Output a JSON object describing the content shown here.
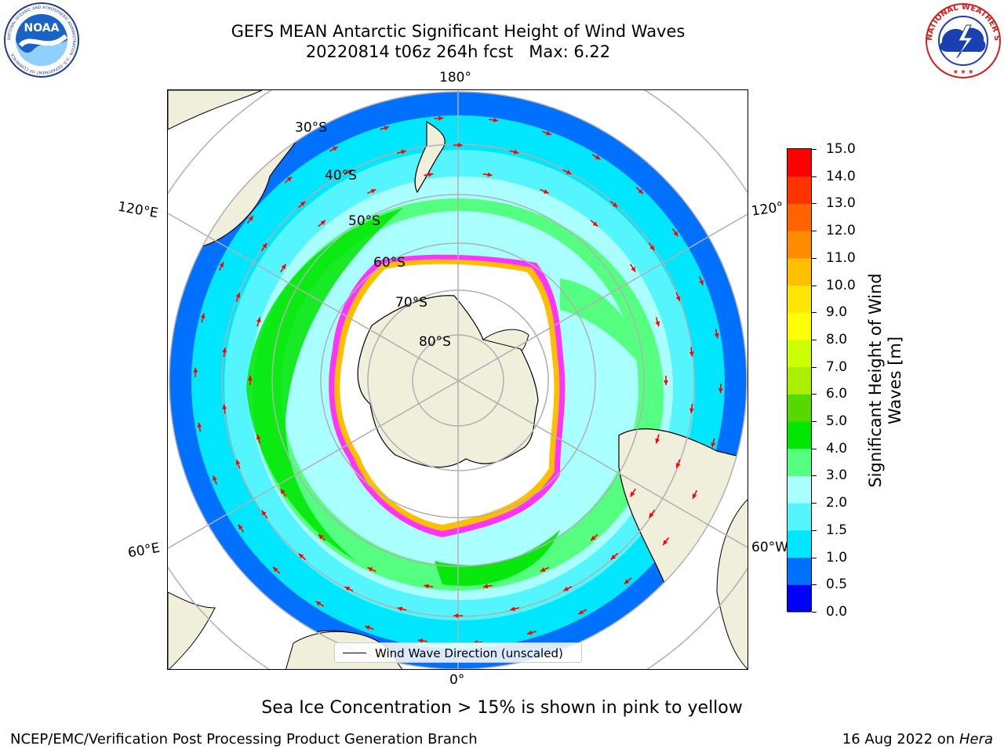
{
  "title": {
    "line1": "GEFS MEAN Antarctic Significant Height of Wind Waves",
    "line2": "20220814 t06z 264h fcst   Max: 6.22"
  },
  "map": {
    "projection": "south-polar-stereographic",
    "longitude_labels": {
      "top": "180°",
      "bottom": "0°",
      "left_upper": "120°E",
      "left_lower": "60°E",
      "right_upper": "120°",
      "right_lower": "60°W"
    },
    "latitude_labels": [
      "30°S",
      "40°S",
      "50°S",
      "60°S",
      "70°S",
      "80°S"
    ],
    "colors": {
      "land": "#efefdb",
      "ice_edge": "#ff33ff",
      "ice_inner": "#ffbf00",
      "arrow": "#ff0000",
      "grid": "#b0b0b0"
    },
    "legend_label": "Wind Wave Direction (unscaled)"
  },
  "colorbar": {
    "label": "Significant Height of Wind Waves [m]",
    "label_line1": "Significant Height of Wind",
    "label_line2": "Waves [m]",
    "ticks": [
      "0.0",
      "0.5",
      "1.0",
      "1.5",
      "2.0",
      "3.0",
      "4.0",
      "5.0",
      "6.0",
      "7.0",
      "8.0",
      "9.0",
      "10.0",
      "11.0",
      "12.0",
      "13.0",
      "14.0",
      "15.0"
    ],
    "colors": [
      "#0000ff",
      "#0070ff",
      "#00e6ff",
      "#55f5ff",
      "#aaffff",
      "#55ff7f",
      "#00e600",
      "#55d900",
      "#aaee00",
      "#ccff00",
      "#ffff00",
      "#ffe600",
      "#ffbf00",
      "#ff8c00",
      "#ff6400",
      "#ff3200",
      "#ff0000"
    ]
  },
  "sub_note": "Sea Ice Concentration > 15% is shown in pink to yellow",
  "footer": {
    "left": "NCEP/EMC/Verification Post Processing Product Generation Branch",
    "right_date": "16 Aug 2022 on ",
    "right_host": "Hera"
  },
  "logos": {
    "left": "NOAA",
    "left_ring": "NATIONAL OCEANIC AND ATMOSPHERIC ADMINISTRATION · U.S. DEPARTMENT OF COMMERCE",
    "right_ring": "NATIONAL WEATHER SERVICE"
  }
}
